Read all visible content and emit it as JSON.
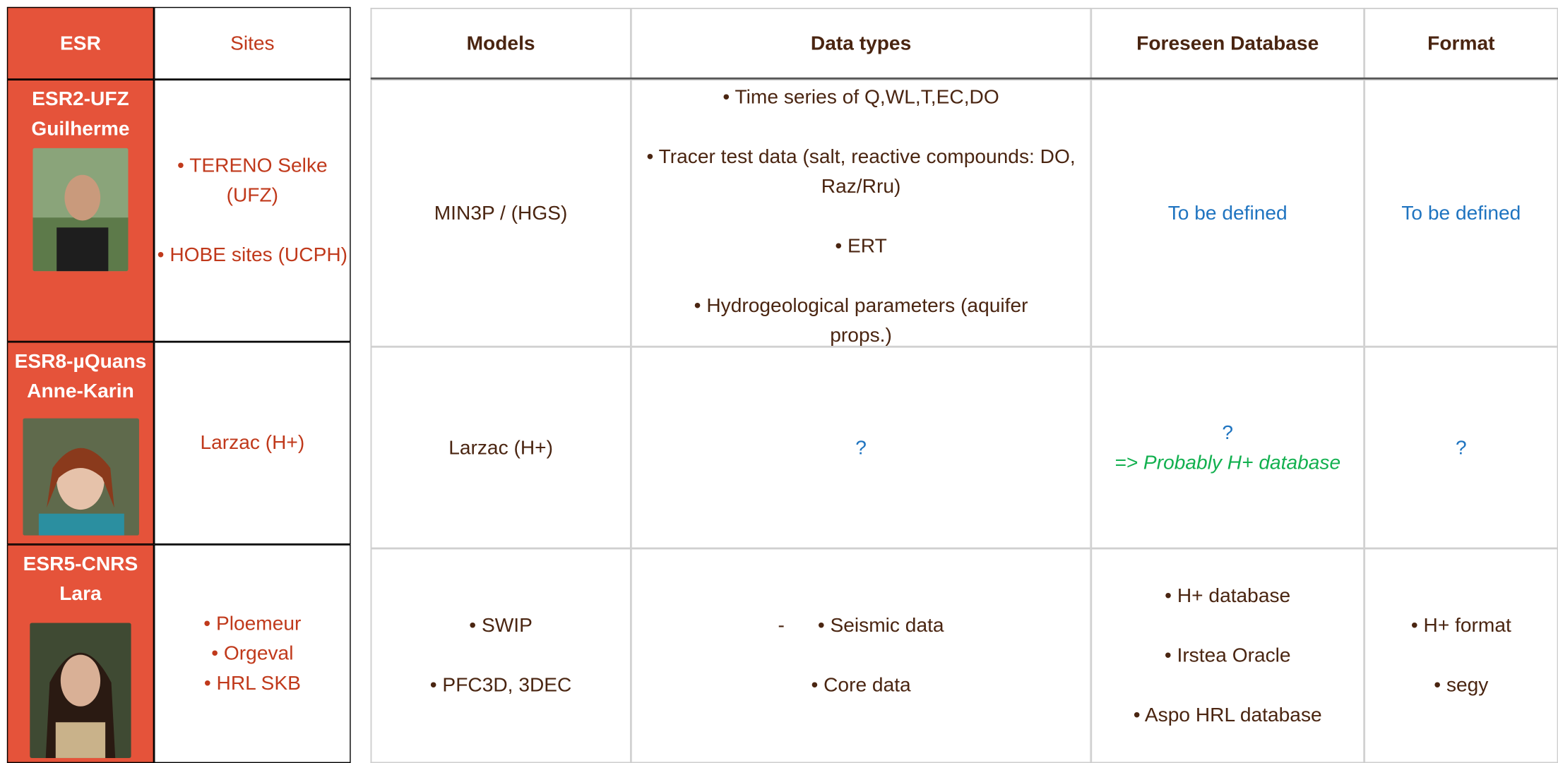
{
  "left_table": {
    "header": [
      "ESR",
      "Sites"
    ],
    "rows": [
      {
        "esr": [
          "ESR2-UFZ",
          "Guilherme"
        ],
        "sites": [
          "• TERENO Selke (UFZ)",
          "• HOBE sites (UCPH)"
        ]
      },
      {
        "esr": [
          "ESR8-µQuans",
          "Anne-Karin"
        ],
        "sites": [
          "Larzac (H+)"
        ]
      },
      {
        "esr": [
          "ESR5-CNRS",
          "Lara"
        ],
        "sites": [
          "• Ploemeur",
          "• Orgeval",
          "• HRL SKB"
        ]
      }
    ]
  },
  "right_table": {
    "header": [
      "Models",
      "Data types",
      "Foreseen Database",
      "Format"
    ],
    "rows": [
      {
        "models": [
          "MIN3P / (HGS)"
        ],
        "data_types": [
          "• Time series of Q,WL,T,EC,DO",
          "• Tracer test data (salt, reactive compounds: DO, Raz/Rru)",
          "• ERT",
          "• Hydrogeological parameters (aquifer props.)"
        ],
        "database": [
          "To be defined"
        ],
        "format": [
          "To be defined"
        ]
      },
      {
        "models": [
          "Larzac (H+)"
        ],
        "data_types": [
          "?"
        ],
        "database": [
          "?",
          "=> Probably H+ database"
        ],
        "format": [
          "?"
        ]
      },
      {
        "models": [
          "• SWIP",
          "• PFC3D, 3DEC"
        ],
        "data_types": [
          "-      • Seismic data",
          "• Core data"
        ],
        "database": [
          "• H+ database",
          "• Irstea Oracle",
          "• Aspo HRL database"
        ],
        "format": [
          "• H+ format",
          "• segy"
        ]
      }
    ]
  }
}
